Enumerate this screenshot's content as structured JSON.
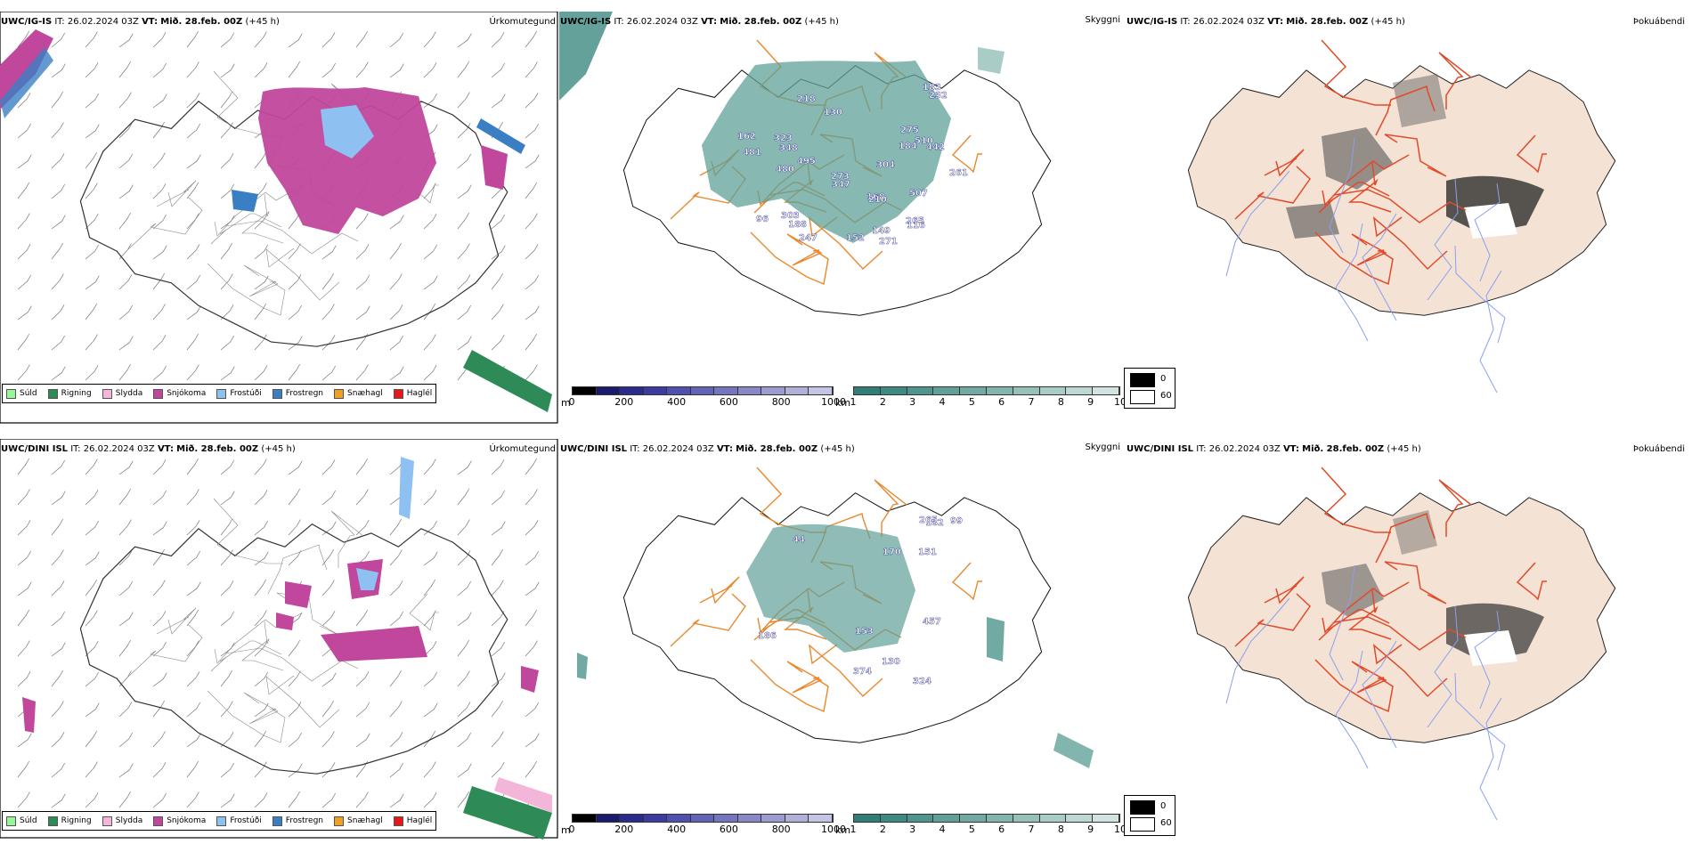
{
  "rows": [
    {
      "precip": {
        "model": "UWC/IG-IS",
        "it_label": "IT:",
        "it_value": "26.02.2024 03Z",
        "vt_label": "VT:",
        "vt_value": "Mið. 28.feb. 00Z",
        "lead": "(+45 h)",
        "title": "Úrkomutegund"
      },
      "cloud": {
        "model": "UWC/IG-IS",
        "it_label": "IT:",
        "it_value": "26.02.2024 03Z",
        "vt_label": "VT:",
        "vt_value": "Mið. 28.feb. 00Z",
        "lead": "(+45 h)",
        "title": "Skyggni",
        "labels": [
          "271",
          "218",
          "303",
          "323",
          "510",
          "149",
          "261",
          "495",
          "347",
          "188",
          "96",
          "162",
          "273",
          "168",
          "184",
          "183",
          "481",
          "232",
          "507",
          "442",
          "265",
          "210",
          "247",
          "116",
          "304",
          "275",
          "480",
          "348",
          "152",
          "130"
        ]
      },
      "fog": {
        "model": "UWC/IG-IS",
        "it_label": "IT:",
        "it_value": "26.02.2024 03Z",
        "vt_label": "VT:",
        "vt_value": "Mið. 28.feb. 00Z",
        "lead": "(+45 h)",
        "title": "Þokuábendi"
      }
    },
    {
      "precip": {
        "model": "UWC/DINI ISL",
        "it_label": "IT:",
        "it_value": "26.02.2024 03Z",
        "vt_label": "VT:",
        "vt_value": "Mið. 28.feb. 00Z",
        "lead": "(+45 h)",
        "title": "Úrkomutegund"
      },
      "cloud": {
        "model": "UWC/DINI ISL",
        "it_label": "IT:",
        "it_value": "26.02.2024 03Z",
        "vt_label": "VT:",
        "vt_value": "Mið. 28.feb. 00Z",
        "lead": "(+45 h)",
        "title": "Skyggni",
        "labels": [
          "182",
          "44",
          "99",
          "457",
          "151",
          "374",
          "265",
          "324",
          "130",
          "186",
          "153",
          "170"
        ]
      },
      "fog": {
        "model": "UWC/DINI ISL",
        "it_label": "IT:",
        "it_value": "26.02.2024 03Z",
        "vt_label": "VT:",
        "vt_value": "Mið. 28.feb. 00Z",
        "lead": "(+45 h)",
        "title": "Þokuábendi"
      }
    }
  ],
  "precip_legend": [
    {
      "label": "Súld",
      "color": "#98f598"
    },
    {
      "label": "Rigning",
      "color": "#2e8b57"
    },
    {
      "label": "Slydda",
      "color": "#f4b6d8"
    },
    {
      "label": "Snjókoma",
      "color": "#c0479c"
    },
    {
      "label": "Frostúði",
      "color": "#8ec1f2"
    },
    {
      "label": "Frostregn",
      "color": "#3a7fc4"
    },
    {
      "label": "Snæhagl",
      "color": "#f0a020"
    },
    {
      "label": "Haglél",
      "color": "#e81818"
    }
  ],
  "ceiling_bar": {
    "unit": "m",
    "ticks": [
      "0",
      "200",
      "400",
      "600",
      "800",
      "1000"
    ],
    "colors": [
      "#000000",
      "#1a1a6e",
      "#2b2b8f",
      "#3c3ca0",
      "#5050b0",
      "#6262b8",
      "#7474c0",
      "#8888c8",
      "#9c9cd0",
      "#b0b0d8",
      "#c4c4e4"
    ]
  },
  "vis_bar": {
    "unit": "km",
    "ticks": [
      "1",
      "2",
      "3",
      "4",
      "5",
      "6",
      "7",
      "8",
      "9",
      "10"
    ],
    "colors": [
      "#2f7f78",
      "#3d8a82",
      "#4e958d",
      "#5fa097",
      "#70aaa2",
      "#82b5ad",
      "#95c1b9",
      "#a9ccc6",
      "#bdd8d3",
      "#d2e4e1"
    ]
  },
  "fog_legend": {
    "dark": "0",
    "light": "60"
  }
}
